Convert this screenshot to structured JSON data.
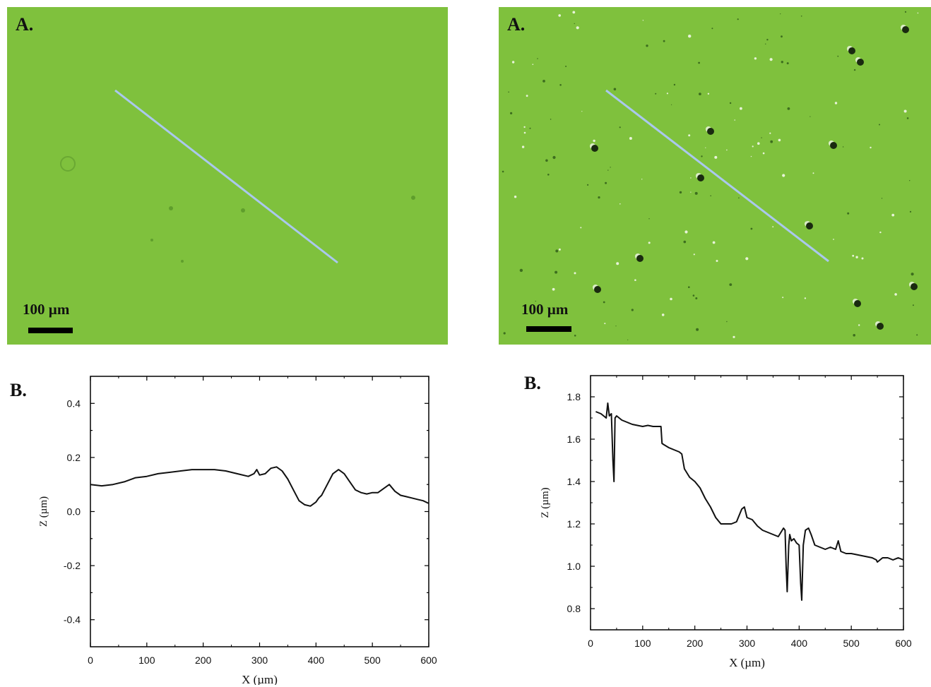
{
  "colors": {
    "micrograph_green": "#7fc13d",
    "profile_line": "#aac8ee",
    "plot_line": "#111111",
    "scale_bar": "#000000"
  },
  "micrographs": [
    {
      "label": "A.",
      "scale_label": "100 µm",
      "texture": "smooth"
    },
    {
      "label": "A.",
      "scale_label": "100 µm",
      "texture": "rough"
    }
  ],
  "chart_panels": [
    {
      "label": "B."
    },
    {
      "label": "B."
    }
  ],
  "chart_data": [
    {
      "type": "line",
      "xlabel": "X (µm)",
      "ylabel": "Z (µm)",
      "xlim": [
        0,
        600
      ],
      "ylim": [
        -0.5,
        0.5
      ],
      "xticks": [
        "0",
        "100",
        "200",
        "300",
        "400",
        "500",
        "600"
      ],
      "yticks": [
        "0.4",
        "0.2",
        "0.0",
        "-0.2",
        "-0.4"
      ],
      "ytick_values": [
        0.4,
        0.2,
        0.0,
        -0.2,
        -0.4
      ],
      "grid": false,
      "series": [
        {
          "x": [
            0,
            20,
            40,
            60,
            80,
            100,
            120,
            140,
            160,
            180,
            200,
            220,
            240,
            260,
            280,
            290,
            295,
            300,
            310,
            320,
            330,
            340,
            350,
            360,
            370,
            380,
            390,
            400,
            405,
            410,
            420,
            430,
            440,
            450,
            460,
            470,
            480,
            490,
            500,
            510,
            520,
            530,
            540,
            550,
            560,
            570,
            580,
            590,
            600
          ],
          "y": [
            0.1,
            0.095,
            0.1,
            0.11,
            0.125,
            0.13,
            0.14,
            0.145,
            0.15,
            0.155,
            0.155,
            0.155,
            0.15,
            0.14,
            0.13,
            0.14,
            0.155,
            0.135,
            0.14,
            0.16,
            0.165,
            0.15,
            0.12,
            0.08,
            0.04,
            0.025,
            0.02,
            0.035,
            0.05,
            0.06,
            0.1,
            0.14,
            0.155,
            0.14,
            0.11,
            0.08,
            0.07,
            0.065,
            0.07,
            0.07,
            0.085,
            0.1,
            0.075,
            0.06,
            0.055,
            0.05,
            0.045,
            0.04,
            0.03
          ]
        }
      ]
    },
    {
      "type": "line",
      "xlabel": "X (µm)",
      "ylabel": "Z (µm)",
      "xlim": [
        0,
        600
      ],
      "ylim": [
        0.7,
        1.9
      ],
      "xticks": [
        "0",
        "100",
        "200",
        "300",
        "400",
        "500",
        "600"
      ],
      "yticks": [
        "1.8",
        "1.6",
        "1.4",
        "1.2",
        "1.0",
        "0.8"
      ],
      "ytick_values": [
        1.8,
        1.6,
        1.4,
        1.2,
        1.0,
        0.8
      ],
      "grid": false,
      "series": [
        {
          "x": [
            10,
            20,
            30,
            33,
            36,
            40,
            43,
            45,
            47,
            50,
            60,
            70,
            80,
            90,
            100,
            110,
            120,
            130,
            135,
            137,
            140,
            150,
            160,
            170,
            175,
            180,
            190,
            200,
            210,
            220,
            230,
            240,
            250,
            260,
            270,
            280,
            290,
            295,
            300,
            310,
            320,
            330,
            340,
            350,
            360,
            370,
            373,
            375,
            377,
            380,
            382,
            385,
            390,
            395,
            400,
            403,
            405,
            408,
            412,
            418,
            423,
            430,
            440,
            450,
            460,
            470,
            475,
            480,
            490,
            500,
            520,
            540,
            548,
            550,
            560,
            570,
            580,
            590,
            600
          ],
          "y": [
            1.73,
            1.72,
            1.7,
            1.77,
            1.71,
            1.72,
            1.5,
            1.4,
            1.7,
            1.71,
            1.69,
            1.68,
            1.67,
            1.665,
            1.66,
            1.665,
            1.66,
            1.66,
            1.66,
            1.58,
            1.575,
            1.56,
            1.55,
            1.54,
            1.53,
            1.46,
            1.42,
            1.4,
            1.37,
            1.32,
            1.28,
            1.23,
            1.2,
            1.2,
            1.2,
            1.21,
            1.27,
            1.28,
            1.23,
            1.22,
            1.19,
            1.17,
            1.16,
            1.15,
            1.14,
            1.18,
            1.17,
            1.0,
            0.88,
            1.1,
            1.15,
            1.12,
            1.13,
            1.11,
            1.1,
            0.92,
            0.84,
            1.1,
            1.17,
            1.18,
            1.15,
            1.1,
            1.09,
            1.08,
            1.09,
            1.08,
            1.12,
            1.07,
            1.06,
            1.06,
            1.05,
            1.04,
            1.03,
            1.02,
            1.04,
            1.04,
            1.03,
            1.04,
            1.03
          ]
        }
      ]
    }
  ]
}
